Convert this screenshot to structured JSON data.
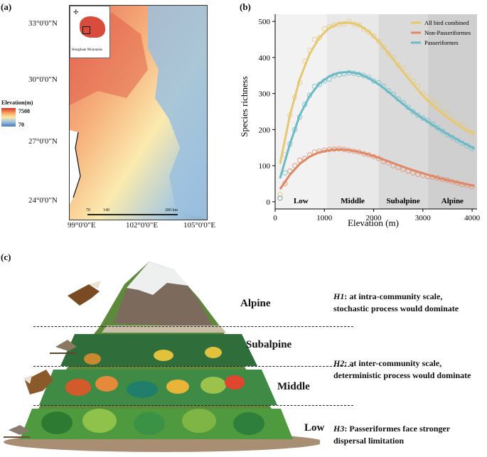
{
  "panel_a": {
    "label": "(a)",
    "lat_labels": [
      "33°0'0\"N",
      "30°0'0\"N",
      "27°0'0\"N",
      "24°0'0\"N"
    ],
    "lon_labels": [
      "99°0'0\"E",
      "102°0'0\"E",
      "105°0'0\"E"
    ],
    "legend_title": "Elevation(m)",
    "legend_max": "7508",
    "legend_min": "70",
    "scale_labels": [
      "70",
      "140",
      "280 km"
    ],
    "inset_caption": "Hengduan Mountains"
  },
  "panel_b": {
    "label": "(b)"
  },
  "chart_data": {
    "type": "line",
    "title": "",
    "xlabel": "Elevation (m)",
    "ylabel": "Species richness",
    "xlim": [
      0,
      4100
    ],
    "ylim": [
      -20,
      520
    ],
    "xticks": [
      "0",
      "1000",
      "2000",
      "3000",
      "4000"
    ],
    "yticks": [
      "0",
      "100",
      "200",
      "300",
      "400",
      "500"
    ],
    "legend_position": "top-right",
    "zones": [
      {
        "name": "Low",
        "from": 0,
        "to": 1050,
        "color": "#f2f2f2"
      },
      {
        "name": "Middle",
        "from": 1050,
        "to": 2100,
        "color": "#e8e8e8"
      },
      {
        "name": "Subalpine",
        "from": 2100,
        "to": 3100,
        "color": "#dadada"
      },
      {
        "name": "Alpine",
        "from": 3100,
        "to": 4100,
        "color": "#cfcfcf"
      }
    ],
    "series": [
      {
        "name": "All bird combined",
        "color": "#e6c873",
        "fit_x": [
          100,
          300,
          500,
          700,
          900,
          1100,
          1300,
          1500,
          1700,
          1900,
          2100,
          2300,
          2500,
          2700,
          2900,
          3100,
          3300,
          3500,
          3700,
          3900,
          4050
        ],
        "fit_y": [
          105,
          240,
          340,
          410,
          455,
          482,
          495,
          497,
          490,
          472,
          445,
          412,
          377,
          343,
          310,
          280,
          255,
          233,
          213,
          198,
          188
        ],
        "points_x": [
          100,
          200,
          300,
          400,
          500,
          600,
          700,
          800,
          900,
          1000,
          1100,
          1200,
          1300,
          1400,
          1500,
          1600,
          1700,
          1800,
          1900,
          2000,
          2100,
          2200,
          2300,
          2400,
          2500,
          2600,
          2700,
          2800,
          2900,
          3000,
          3100,
          3200,
          3300,
          3400,
          3500,
          3600,
          3700,
          3800,
          3900,
          4000
        ],
        "points_y": [
          20,
          130,
          240,
          290,
          330,
          390,
          420,
          450,
          455,
          480,
          485,
          490,
          492,
          493,
          500,
          492,
          490,
          478,
          470,
          460,
          445,
          430,
          410,
          400,
          380,
          370,
          350,
          335,
          320,
          300,
          290,
          280,
          270,
          255,
          245,
          230,
          220,
          215,
          200,
          190
        ]
      },
      {
        "name": "Non-Passeriformes",
        "color": "#e08866",
        "fit_x": [
          100,
          300,
          500,
          700,
          900,
          1100,
          1300,
          1500,
          1700,
          1900,
          2100,
          2300,
          2500,
          2700,
          2900,
          3100,
          3300,
          3500,
          3700,
          3900,
          4050
        ],
        "fit_y": [
          35,
          75,
          105,
          125,
          137,
          143,
          145,
          143,
          138,
          131,
          122,
          112,
          102,
          92,
          83,
          75,
          67,
          60,
          54,
          48,
          44
        ],
        "points_x": [
          100,
          200,
          300,
          400,
          500,
          600,
          700,
          800,
          900,
          1000,
          1100,
          1200,
          1300,
          1400,
          1500,
          1600,
          1700,
          1800,
          1900,
          2000,
          2100,
          2200,
          2300,
          2400,
          2500,
          2600,
          2700,
          2800,
          2900,
          3000,
          3100,
          3200,
          3300,
          3400,
          3500,
          3600,
          3700,
          3800,
          3900,
          4000
        ],
        "points_y": [
          10,
          50,
          85,
          100,
          115,
          120,
          130,
          138,
          140,
          143,
          145,
          146,
          147,
          145,
          142,
          140,
          138,
          133,
          130,
          125,
          120,
          112,
          108,
          100,
          95,
          90,
          85,
          80,
          76,
          73,
          70,
          68,
          66,
          62,
          60,
          55,
          52,
          48,
          45,
          42
        ]
      },
      {
        "name": "Passeriformes",
        "color": "#6cbac6",
        "fit_x": [
          100,
          300,
          500,
          700,
          900,
          1100,
          1300,
          1500,
          1700,
          1900,
          2100,
          2300,
          2500,
          2700,
          2900,
          3100,
          3300,
          3500,
          3700,
          3900,
          4050
        ],
        "fit_y": [
          65,
          160,
          240,
          293,
          328,
          348,
          358,
          360,
          355,
          343,
          326,
          305,
          282,
          260,
          240,
          222,
          204,
          188,
          172,
          158,
          147
        ],
        "points_x": [
          100,
          200,
          300,
          400,
          500,
          600,
          700,
          800,
          900,
          1000,
          1100,
          1200,
          1300,
          1400,
          1500,
          1600,
          1700,
          1800,
          1900,
          2000,
          2100,
          2200,
          2300,
          2400,
          2500,
          2600,
          2700,
          2800,
          2900,
          3000,
          3100,
          3200,
          3300,
          3400,
          3500,
          3600,
          3700,
          3800,
          3900,
          4000
        ],
        "points_y": [
          10,
          80,
          160,
          200,
          235,
          270,
          295,
          320,
          325,
          335,
          340,
          350,
          352,
          355,
          358,
          356,
          353,
          350,
          345,
          335,
          330,
          320,
          308,
          298,
          285,
          275,
          262,
          250,
          240,
          232,
          225,
          215,
          205,
          195,
          185,
          178,
          170,
          162,
          155,
          148
        ]
      }
    ]
  },
  "panel_c": {
    "label": "(c)",
    "zones": [
      "Alpine",
      "Subalpine",
      "Middle",
      "Low"
    ],
    "hypotheses": [
      {
        "tag": "H1",
        "line1": ": at intra-community scale,",
        "line2": "stochastic process would dominate"
      },
      {
        "tag": "H2",
        "line1": ": at inter-community scale,",
        "line2": "deterministic process would dominate"
      },
      {
        "tag": "H3",
        "line1": ": Passeriformes face stronger",
        "line2": "dispersal limitation"
      }
    ]
  }
}
